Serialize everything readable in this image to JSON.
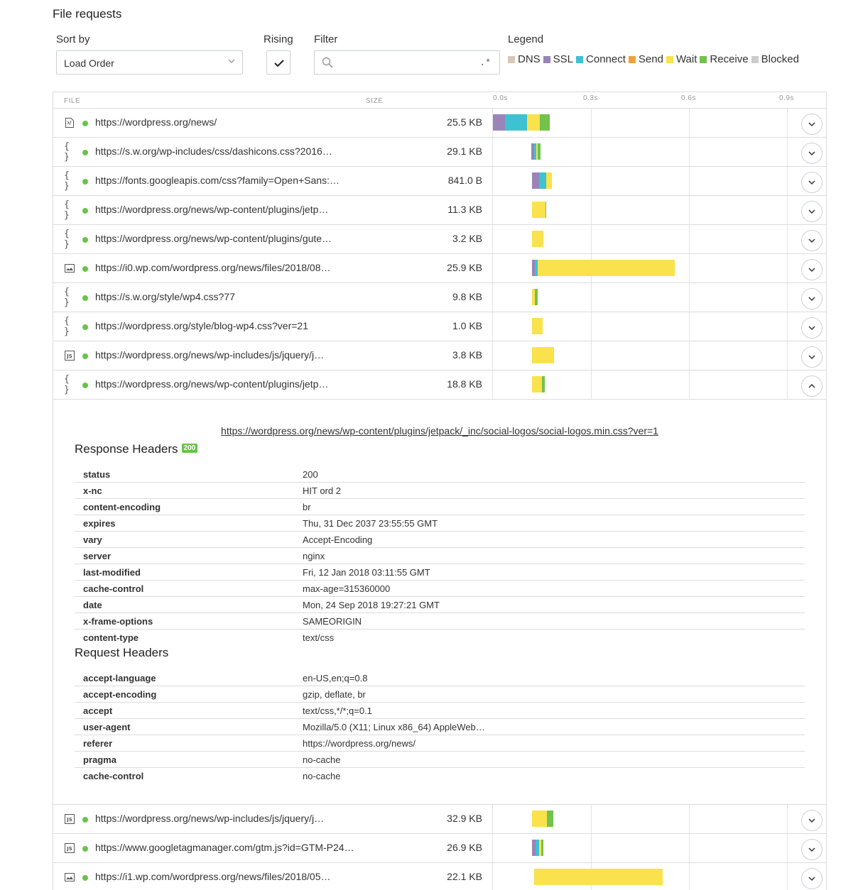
{
  "title": "File requests",
  "controls": {
    "sort_label": "Sort by",
    "sort_value": "Load Order",
    "rising_label": "Rising",
    "filter_label": "Filter",
    "filter_value": "",
    "filter_regex": ".*",
    "legend_label": "Legend"
  },
  "legend": [
    {
      "name": "DNS",
      "color": "#d8c7b6"
    },
    {
      "name": "SSL",
      "color": "#9a84b8"
    },
    {
      "name": "Connect",
      "color": "#3ec2d2"
    },
    {
      "name": "Send",
      "color": "#f2a03d"
    },
    {
      "name": "Wait",
      "color": "#f9e24c"
    },
    {
      "name": "Receive",
      "color": "#72c24b"
    },
    {
      "name": "Blocked",
      "color": "#cccccc"
    }
  ],
  "table_header": {
    "file": "FILE",
    "size": "SIZE",
    "ticks": [
      "0.0s",
      "0.3s",
      "0.6s",
      "0.9s"
    ]
  },
  "rows": [
    {
      "icon": "html-file-icon",
      "url": "https://wordpress.org/news/",
      "size": "25.5 KB",
      "expanded": false,
      "timing": {
        "start": 0.0,
        "ssl": 0.037,
        "connect": 0.068,
        "wait": 0.038,
        "receive": 0.032
      }
    },
    {
      "icon": "css-file-icon",
      "url": "https://s.w.org/wp-includes/css/dashicons.css?2016…",
      "size": "29.1 KB",
      "expanded": false,
      "timing": {
        "start": 0.118,
        "ssl": 0.008,
        "connect": 0.006,
        "wait": 0.006,
        "receive": 0.007
      }
    },
    {
      "icon": "css-file-icon",
      "url": "https://fonts.googleapis.com/css?family=Open+Sans:…",
      "size": "841.0 B",
      "expanded": false,
      "timing": {
        "start": 0.12,
        "ssl": 0.022,
        "connect": 0.022,
        "wait": 0.017,
        "receive": 0
      }
    },
    {
      "icon": "css-file-icon",
      "url": "https://wordpress.org/news/wp-content/plugins/jetp…",
      "size": "11.3 KB",
      "expanded": false,
      "timing": {
        "start": 0.12,
        "ssl": 0,
        "connect": 0,
        "wait": 0.04,
        "receive": 0.004
      }
    },
    {
      "icon": "css-file-icon",
      "url": "https://wordpress.org/news/wp-content/plugins/gute…",
      "size": "3.2 KB",
      "expanded": false,
      "timing": {
        "start": 0.12,
        "ssl": 0,
        "connect": 0,
        "wait": 0.034,
        "receive": 0
      }
    },
    {
      "icon": "image-file-icon",
      "url": "https://i0.wp.com/wordpress.org/news/files/2018/08…",
      "size": "25.9 KB",
      "expanded": false,
      "timing": {
        "start": 0.12,
        "ssl": 0.008,
        "connect": 0.008,
        "wait": 0.42,
        "receive": 0
      }
    },
    {
      "icon": "css-file-icon",
      "url": "https://s.w.org/style/wp4.css?77",
      "size": "9.8 KB",
      "expanded": false,
      "timing": {
        "start": 0.12,
        "ssl": 0,
        "connect": 0,
        "wait": 0.008,
        "receive": 0.01
      }
    },
    {
      "icon": "css-file-icon",
      "url": "https://wordpress.org/style/blog-wp4.css?ver=21",
      "size": "1.0 KB",
      "expanded": false,
      "timing": {
        "start": 0.12,
        "ssl": 0,
        "connect": 0,
        "wait": 0.033,
        "receive": 0
      }
    },
    {
      "icon": "js-file-icon",
      "url": "https://wordpress.org/news/wp-includes/js/jquery/j…",
      "size": "3.8 KB",
      "expanded": false,
      "timing": {
        "start": 0.12,
        "ssl": 0,
        "connect": 0,
        "wait": 0.068,
        "receive": 0
      }
    },
    {
      "icon": "css-file-icon",
      "url": "https://wordpress.org/news/wp-content/plugins/jetp…",
      "size": "18.8 KB",
      "expanded": true,
      "timing": {
        "start": 0.12,
        "ssl": 0,
        "connect": 0,
        "wait": 0.031,
        "receive": 0.007
      }
    }
  ],
  "details": {
    "full_url": "https://wordpress.org/news/wp-content/plugins/jetpack/_inc/social-logos/social-logos.min.css?ver=1",
    "response_title": "Response Headers",
    "status_badge": "200",
    "response_headers": [
      {
        "k": "status",
        "v": "200"
      },
      {
        "k": "x-nc",
        "v": "HIT ord 2"
      },
      {
        "k": "content-encoding",
        "v": "br"
      },
      {
        "k": "expires",
        "v": "Thu, 31 Dec 2037 23:55:55 GMT"
      },
      {
        "k": "vary",
        "v": "Accept-Encoding"
      },
      {
        "k": "server",
        "v": "nginx"
      },
      {
        "k": "last-modified",
        "v": "Fri, 12 Jan 2018 03:11:55 GMT"
      },
      {
        "k": "cache-control",
        "v": "max-age=315360000"
      },
      {
        "k": "date",
        "v": "Mon, 24 Sep 2018 19:27:21 GMT"
      },
      {
        "k": "x-frame-options",
        "v": "SAMEORIGIN"
      },
      {
        "k": "content-type",
        "v": "text/css"
      }
    ],
    "request_title": "Request Headers",
    "request_headers": [
      {
        "k": "accept-language",
        "v": "en-US,en;q=0.8"
      },
      {
        "k": "accept-encoding",
        "v": "gzip, deflate, br"
      },
      {
        "k": "accept",
        "v": "text/css,*/*;q=0.1"
      },
      {
        "k": "user-agent",
        "v": "Mozilla/5.0 (X11; Linux x86_64) AppleWeb…"
      },
      {
        "k": "referer",
        "v": "https://wordpress.org/news/"
      },
      {
        "k": "pragma",
        "v": "no-cache"
      },
      {
        "k": "cache-control",
        "v": "no-cache"
      }
    ]
  },
  "rows_after": [
    {
      "icon": "js-file-icon",
      "url": "https://wordpress.org/news/wp-includes/js/jquery/j…",
      "size": "32.9 KB",
      "timing": {
        "start": 0.12,
        "ssl": 0,
        "connect": 0,
        "wait": 0.045,
        "receive": 0.02
      }
    },
    {
      "icon": "js-file-icon",
      "url": "https://www.googletagmanager.com/gtm.js?id=GTM-P24…",
      "size": "26.9 KB",
      "timing": {
        "start": 0.12,
        "ssl": 0.01,
        "connect": 0.012,
        "wait": 0.006,
        "receive": 0.006
      }
    },
    {
      "icon": "image-file-icon",
      "url": "https://i1.wp.com/wordpress.org/news/files/2018/05…",
      "size": "22.1 KB",
      "timing": {
        "start": 0.125,
        "ssl": 0,
        "connect": 0,
        "wait": 0.395,
        "receive": 0
      }
    }
  ]
}
